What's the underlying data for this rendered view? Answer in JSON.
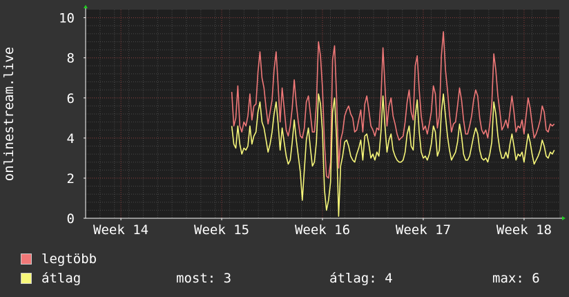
{
  "chart_data": {
    "type": "line",
    "ylabel": "onlinestream.live",
    "ylim": [
      0,
      10.4
    ],
    "yticks": [
      0,
      2,
      4,
      6,
      8,
      10
    ],
    "x_start_week": 13.65,
    "x_end_week": 18.35,
    "xticks": [
      {
        "week": 14,
        "label": "Week 14"
      },
      {
        "week": 15,
        "label": "Week 15"
      },
      {
        "week": 16,
        "label": "Week 16"
      },
      {
        "week": 17,
        "label": "Week 17"
      },
      {
        "week": 18,
        "label": "Week 18"
      }
    ],
    "data_start_week": 15.1,
    "data_end_week": 18.3,
    "series": [
      {
        "name": "legtöbb",
        "color": "#f07878",
        "values": [
          6.3,
          4.6,
          5.0,
          6.6,
          4.6,
          4.3,
          4.8,
          4.6,
          5.1,
          6.2,
          4.9,
          5.6,
          5.7,
          7.3,
          8.3,
          7.0,
          6.5,
          5.5,
          4.7,
          5.3,
          5.9,
          7.4,
          8.3,
          6.6,
          4.8,
          6.5,
          5.5,
          4.4,
          4.1,
          4.6,
          5.5,
          6.9,
          5.7,
          4.8,
          4.1,
          4.0,
          4.5,
          5.8,
          6.1,
          5.2,
          4.3,
          4.3,
          5.7,
          8.8,
          8.1,
          6.5,
          3.7,
          2.1,
          2.0,
          2.8,
          7.9,
          8.6,
          6.1,
          2.5,
          3.9,
          4.3,
          5.1,
          5.4,
          5.6,
          5.2,
          5.0,
          4.3,
          4.4,
          4.9,
          5.4,
          4.3,
          5.7,
          6.1,
          5.4,
          4.6,
          4.4,
          4.1,
          4.5,
          4.4,
          6.0,
          8.5,
          6.6,
          4.6,
          5.6,
          6.0,
          5.1,
          4.7,
          4.2,
          3.9,
          4.0,
          4.1,
          4.8,
          5.8,
          6.4,
          5.3,
          4.9,
          7.6,
          8.1,
          6.4,
          5.1,
          4.4,
          4.6,
          4.2,
          4.7,
          5.3,
          6.6,
          6.2,
          4.5,
          5.1,
          8.1,
          9.3,
          7.4,
          6.4,
          5.2,
          4.3,
          4.7,
          4.8,
          5.6,
          6.5,
          5.9,
          4.9,
          4.2,
          4.2,
          4.6,
          5.1,
          5.9,
          6.4,
          6.1,
          5.0,
          4.4,
          4.2,
          4.4,
          4.0,
          4.7,
          5.7,
          8.2,
          7.4,
          6.1,
          5.3,
          4.4,
          4.6,
          4.9,
          4.5,
          5.3,
          6.1,
          5.3,
          4.3,
          4.6,
          4.5,
          4.9,
          4.2,
          5.1,
          6.0,
          5.5,
          4.7,
          4.0,
          4.2,
          4.5,
          4.9,
          5.6,
          5.3,
          4.4,
          4.3,
          4.7,
          4.6,
          4.7
        ]
      },
      {
        "name": "átlag",
        "color": "#f7f77a",
        "values": [
          4.6,
          3.7,
          3.5,
          4.6,
          3.7,
          3.2,
          3.5,
          3.4,
          3.6,
          4.6,
          3.7,
          4.1,
          4.3,
          5.3,
          5.8,
          4.8,
          4.5,
          3.9,
          3.3,
          3.7,
          4.3,
          5.2,
          5.8,
          4.7,
          3.4,
          4.5,
          3.8,
          3.1,
          2.7,
          2.9,
          3.8,
          4.9,
          3.9,
          3.1,
          2.3,
          0.9,
          2.4,
          3.9,
          4.5,
          3.5,
          2.6,
          2.8,
          3.8,
          6.2,
          5.7,
          4.3,
          1.4,
          0.4,
          0.9,
          1.8,
          5.3,
          6.0,
          4.0,
          0.1,
          2.6,
          3.1,
          3.8,
          3.9,
          3.6,
          3.1,
          2.9,
          2.8,
          3.2,
          3.5,
          3.9,
          2.9,
          4.1,
          4.2,
          3.7,
          3.0,
          3.2,
          2.9,
          3.3,
          3.1,
          4.3,
          6.1,
          4.6,
          3.3,
          3.9,
          4.2,
          3.4,
          3.1,
          2.9,
          2.8,
          2.8,
          2.9,
          3.3,
          4.2,
          4.6,
          3.6,
          3.4,
          5.1,
          5.9,
          4.3,
          3.3,
          3.0,
          3.1,
          2.9,
          3.2,
          3.7,
          4.6,
          4.3,
          3.1,
          3.4,
          5.3,
          6.2,
          5.1,
          4.1,
          3.4,
          2.9,
          3.1,
          3.3,
          3.8,
          4.7,
          4.1,
          3.2,
          2.9,
          2.9,
          3.1,
          3.6,
          4.1,
          4.5,
          4.2,
          3.4,
          3.0,
          2.9,
          3.0,
          2.8,
          3.2,
          3.8,
          5.8,
          5.2,
          4.1,
          3.4,
          3.0,
          3.0,
          3.3,
          3.0,
          3.7,
          4.2,
          3.6,
          2.9,
          3.2,
          3.1,
          3.3,
          2.8,
          3.5,
          4.2,
          3.8,
          3.2,
          2.7,
          2.9,
          3.1,
          3.4,
          3.9,
          3.6,
          3.1,
          3.0,
          3.3,
          3.2,
          3.4
        ]
      }
    ],
    "grid": true
  },
  "legend": {
    "max_label": "legtöbb",
    "avg_label": "átlag",
    "max_color": "#f07878",
    "avg_color": "#f7f77a"
  },
  "stats": {
    "now": "most: 3",
    "avg": "átlag: 4",
    "max": "max: 6"
  }
}
